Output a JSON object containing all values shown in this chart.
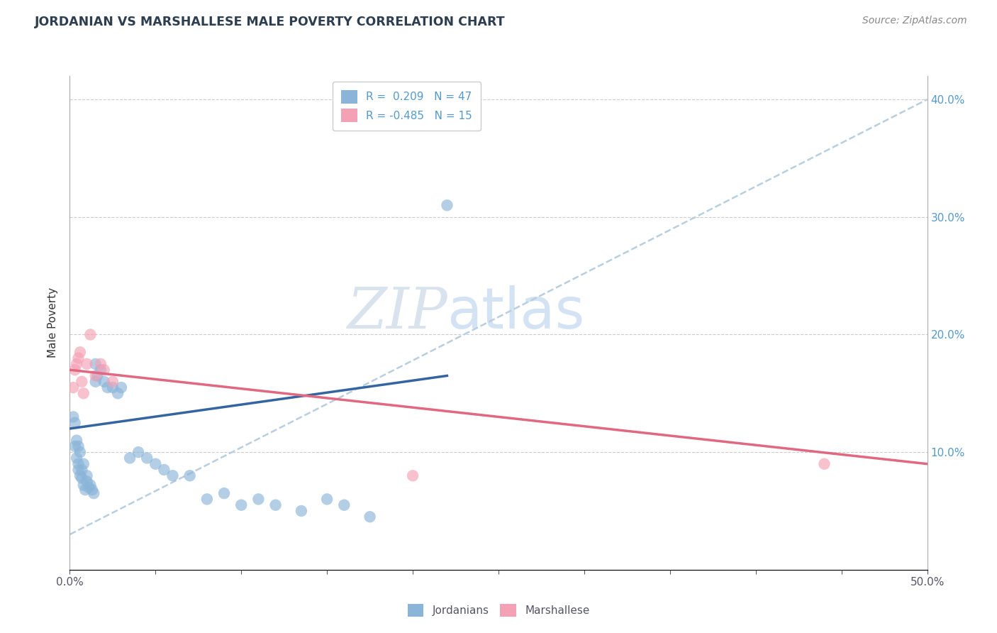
{
  "title": "JORDANIAN VS MARSHALLESE MALE POVERTY CORRELATION CHART",
  "source": "Source: ZipAtlas.com",
  "ylabel": "Male Poverty",
  "xlim": [
    0.0,
    0.5
  ],
  "ylim": [
    0.0,
    0.42
  ],
  "jordanians_R": 0.209,
  "jordanians_N": 47,
  "marshallese_R": -0.485,
  "marshallese_N": 15,
  "jordanians_color": "#8ab4d8",
  "marshallese_color": "#f4a0b5",
  "trend_jordan_color": "#3465a0",
  "trend_marshall_color": "#e06880",
  "trend_dashed_color": "#b8cfe0",
  "background_color": "#ffffff",
  "watermark_zip": "ZIP",
  "watermark_atlas": "atlas",
  "jordan_x": [
    0.002,
    0.003,
    0.003,
    0.004,
    0.004,
    0.005,
    0.005,
    0.005,
    0.006,
    0.006,
    0.007,
    0.007,
    0.008,
    0.008,
    0.009,
    0.01,
    0.01,
    0.011,
    0.012,
    0.013,
    0.014,
    0.015,
    0.015,
    0.016,
    0.018,
    0.02,
    0.022,
    0.025,
    0.028,
    0.03,
    0.035,
    0.04,
    0.045,
    0.05,
    0.055,
    0.06,
    0.07,
    0.08,
    0.09,
    0.1,
    0.11,
    0.12,
    0.135,
    0.15,
    0.16,
    0.175,
    0.22
  ],
  "jordan_y": [
    0.13,
    0.105,
    0.125,
    0.095,
    0.11,
    0.085,
    0.09,
    0.105,
    0.08,
    0.1,
    0.078,
    0.085,
    0.072,
    0.09,
    0.068,
    0.075,
    0.08,
    0.07,
    0.072,
    0.068,
    0.065,
    0.16,
    0.175,
    0.165,
    0.17,
    0.16,
    0.155,
    0.155,
    0.15,
    0.155,
    0.095,
    0.1,
    0.095,
    0.09,
    0.085,
    0.08,
    0.08,
    0.06,
    0.065,
    0.055,
    0.06,
    0.055,
    0.05,
    0.06,
    0.055,
    0.045,
    0.31
  ],
  "marshall_x": [
    0.002,
    0.003,
    0.004,
    0.005,
    0.006,
    0.007,
    0.008,
    0.01,
    0.012,
    0.015,
    0.018,
    0.02,
    0.025,
    0.2,
    0.44
  ],
  "marshall_y": [
    0.155,
    0.17,
    0.175,
    0.18,
    0.185,
    0.16,
    0.15,
    0.175,
    0.2,
    0.165,
    0.175,
    0.17,
    0.16,
    0.08,
    0.09
  ],
  "jordan_trend_x0": 0.0,
  "jordan_trend_y0": 0.12,
  "jordan_trend_x1": 0.22,
  "jordan_trend_y1": 0.165,
  "marshall_trend_x0": 0.0,
  "marshall_trend_y0": 0.17,
  "marshall_trend_x1": 0.5,
  "marshall_trend_y1": 0.09,
  "dashed_trend_x0": 0.0,
  "dashed_trend_y0": 0.03,
  "dashed_trend_x1": 0.5,
  "dashed_trend_y1": 0.4
}
